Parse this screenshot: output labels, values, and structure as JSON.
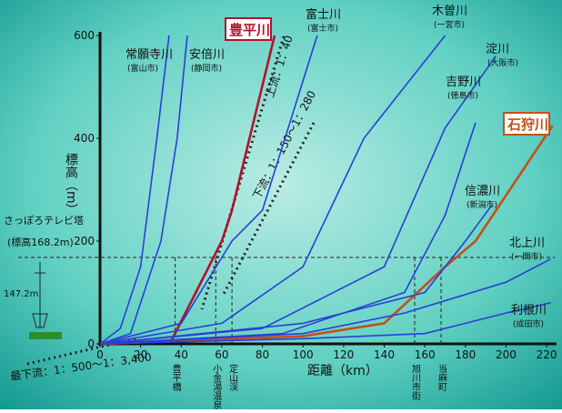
{
  "chart_data": {
    "type": "line",
    "xlabel": "距離（km）",
    "ylabel": "標高（m）",
    "xlim": [
      0,
      224
    ],
    "ylim": [
      0,
      600
    ],
    "xticks": [
      0,
      20,
      40,
      60,
      80,
      100,
      120,
      140,
      160,
      180,
      200,
      220
    ],
    "yticks": [
      0,
      200,
      400,
      600
    ],
    "series": [
      {
        "name": "常願寺川",
        "place": "(富山市)",
        "color": "#2a3fd6",
        "x": [
          0,
          10,
          20,
          28,
          34
        ],
        "values": [
          0,
          30,
          150,
          400,
          600
        ]
      },
      {
        "name": "安倍川",
        "place": "(静岡市)",
        "color": "#2a3fd6",
        "x": [
          0,
          15,
          30,
          38,
          43
        ],
        "values": [
          0,
          20,
          200,
          400,
          600
        ]
      },
      {
        "name": "豊平川",
        "color": "#b3122a",
        "x": [
          0,
          35,
          60,
          65,
          86
        ],
        "values": [
          0,
          5,
          200,
          260,
          600
        ]
      },
      {
        "name": "富士川",
        "place": "(富士市)",
        "color": "#2a3fd6",
        "x": [
          0,
          40,
          65,
          80,
          107
        ],
        "values": [
          0,
          40,
          200,
          260,
          600
        ]
      },
      {
        "name": "木曽川",
        "place": "(一宮市)",
        "color": "#2a3fd6",
        "x": [
          0,
          60,
          100,
          130,
          170
        ],
        "values": [
          0,
          40,
          150,
          400,
          600
        ]
      },
      {
        "name": "淀川",
        "place": "(大阪市)",
        "color": "#2a3fd6",
        "x": [
          0,
          80,
          140,
          170,
          195
        ],
        "values": [
          0,
          30,
          150,
          420,
          560
        ]
      },
      {
        "name": "吉野川",
        "place": "(徳島市)",
        "color": "#2a3fd6",
        "x": [
          0,
          90,
          150,
          170,
          185
        ],
        "values": [
          0,
          20,
          100,
          250,
          430
        ]
      },
      {
        "name": "石狩川",
        "color": "#c2501a",
        "x": [
          0,
          100,
          140,
          170,
          185,
          223
        ],
        "values": [
          0,
          15,
          40,
          150,
          200,
          425
        ]
      },
      {
        "name": "信濃川",
        "place": "(新潟市)",
        "color": "#2a3fd6",
        "x": [
          0,
          100,
          160,
          180,
          193
        ],
        "values": [
          0,
          40,
          100,
          200,
          270
        ]
      },
      {
        "name": "北上川",
        "place": "(一関市)",
        "color": "#2a3fd6",
        "x": [
          0,
          100,
          150,
          200,
          222
        ],
        "values": [
          0,
          20,
          60,
          120,
          165
        ]
      },
      {
        "name": "利根川",
        "place": "(成田市)",
        "color": "#2a3fd6",
        "x": [
          0,
          100,
          160,
          200,
          222
        ],
        "values": [
          0,
          10,
          20,
          60,
          80
        ]
      }
    ],
    "landmarks": [
      {
        "label": "豊平橋",
        "x": 37
      },
      {
        "label": "小金湯温泉",
        "x": 57
      },
      {
        "label": "定山渓",
        "x": 65
      },
      {
        "label": "旭川市街",
        "x": 155
      },
      {
        "label": "当麻町",
        "x": 168
      }
    ],
    "tower": {
      "name": "さっぽろテレビ塔",
      "note": "(標高168.2m)",
      "elevation": 168.2,
      "height_label": "147.2m"
    },
    "slopes": [
      "上流：1：40",
      "下流：1：150～1：280",
      "最下流：1：500～1：3,400"
    ]
  }
}
